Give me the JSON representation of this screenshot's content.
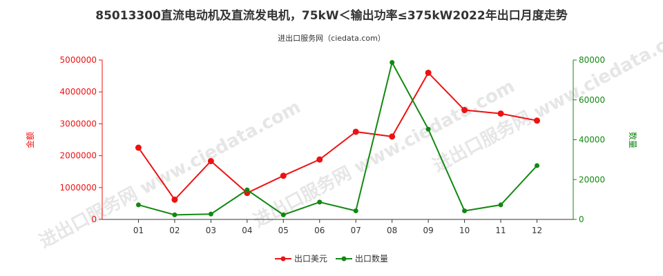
{
  "title": "85013300直流电动机及直流发电机，75kW＜输出功率≤375kW2022年出口月度走势",
  "subtitle": "进出口服务网（ciedata.com）",
  "watermark": "进出口服务网 www.ciedata.com",
  "colors": {
    "amount": "#ee1111",
    "quantity": "#118811",
    "axis": "#333333"
  },
  "chart_data": {
    "type": "line",
    "categories": [
      "01",
      "02",
      "03",
      "04",
      "05",
      "06",
      "07",
      "08",
      "09",
      "10",
      "11",
      "12"
    ],
    "y_left": {
      "label": "金额",
      "ylim": [
        0,
        5000000
      ],
      "ticks": [
        "0",
        "1000000",
        "2000000",
        "3000000",
        "4000000",
        "5000000"
      ]
    },
    "y_right": {
      "label": "数量",
      "ylim": [
        0,
        80000
      ],
      "ticks": [
        "0",
        "20000",
        "40000",
        "60000",
        "80000"
      ]
    },
    "series": [
      {
        "name": "出口美元",
        "axis": "left",
        "values": [
          2250000,
          620000,
          1830000,
          830000,
          1370000,
          1880000,
          2750000,
          2600000,
          4600000,
          3430000,
          3320000,
          3100000
        ]
      },
      {
        "name": "出口数量",
        "axis": "right",
        "values": [
          7300,
          2300,
          2700,
          14800,
          2300,
          8700,
          4300,
          78800,
          45300,
          4300,
          7300,
          27000
        ]
      }
    ],
    "legend": "bottom-center"
  }
}
